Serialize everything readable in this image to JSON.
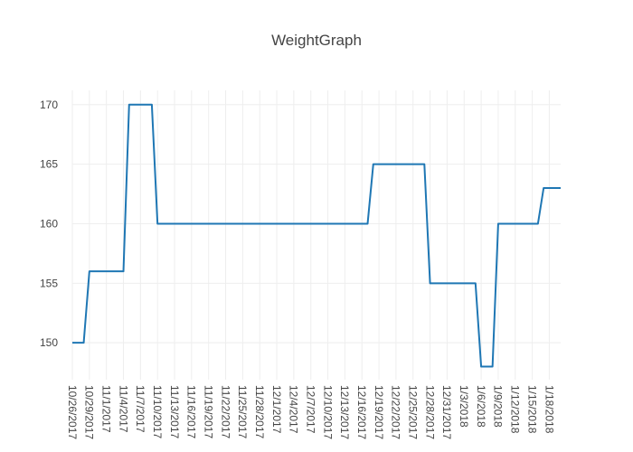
{
  "chart_data": {
    "type": "line",
    "title": "WeightGraph",
    "xlabel": "",
    "ylabel": "",
    "x_range": [
      "10/26/2017",
      "1/20/2018"
    ],
    "ylim": [
      146.9,
      171.2
    ],
    "grid": true,
    "x_tick_labels": [
      "10/26/2017",
      "10/29/2017",
      "11/1/2017",
      "11/4/2017",
      "11/7/2017",
      "11/10/2017",
      "11/13/2017",
      "11/16/2017",
      "11/19/2017",
      "11/22/2017",
      "11/25/2017",
      "11/28/2017",
      "12/1/2017",
      "12/4/2017",
      "12/7/2017",
      "12/10/2017",
      "12/13/2017",
      "12/16/2017",
      "12/19/2017",
      "12/22/2017",
      "12/25/2017",
      "12/28/2017",
      "12/31/2017",
      "1/3/2018",
      "1/6/2018",
      "1/9/2018",
      "1/12/2018",
      "1/15/2018",
      "1/18/2018"
    ],
    "y_tick_labels": [
      "150",
      "155",
      "160",
      "165",
      "170"
    ],
    "series": [
      {
        "color": "#1f77b4",
        "x": [
          "10/26/2017",
          "10/28/2017",
          "10/29/2017",
          "11/4/2017",
          "11/5/2017",
          "11/9/2017",
          "11/10/2017",
          "12/17/2017",
          "12/18/2017",
          "12/27/2017",
          "12/28/2017",
          "1/5/2018",
          "1/6/2018",
          "1/8/2018",
          "1/9/2018",
          "1/16/2018",
          "1/17/2018",
          "1/20/2018"
        ],
        "y": [
          150,
          150,
          156,
          156,
          170,
          170,
          160,
          160,
          165,
          165,
          155,
          155,
          148,
          148,
          160,
          160,
          163,
          163
        ]
      }
    ]
  }
}
